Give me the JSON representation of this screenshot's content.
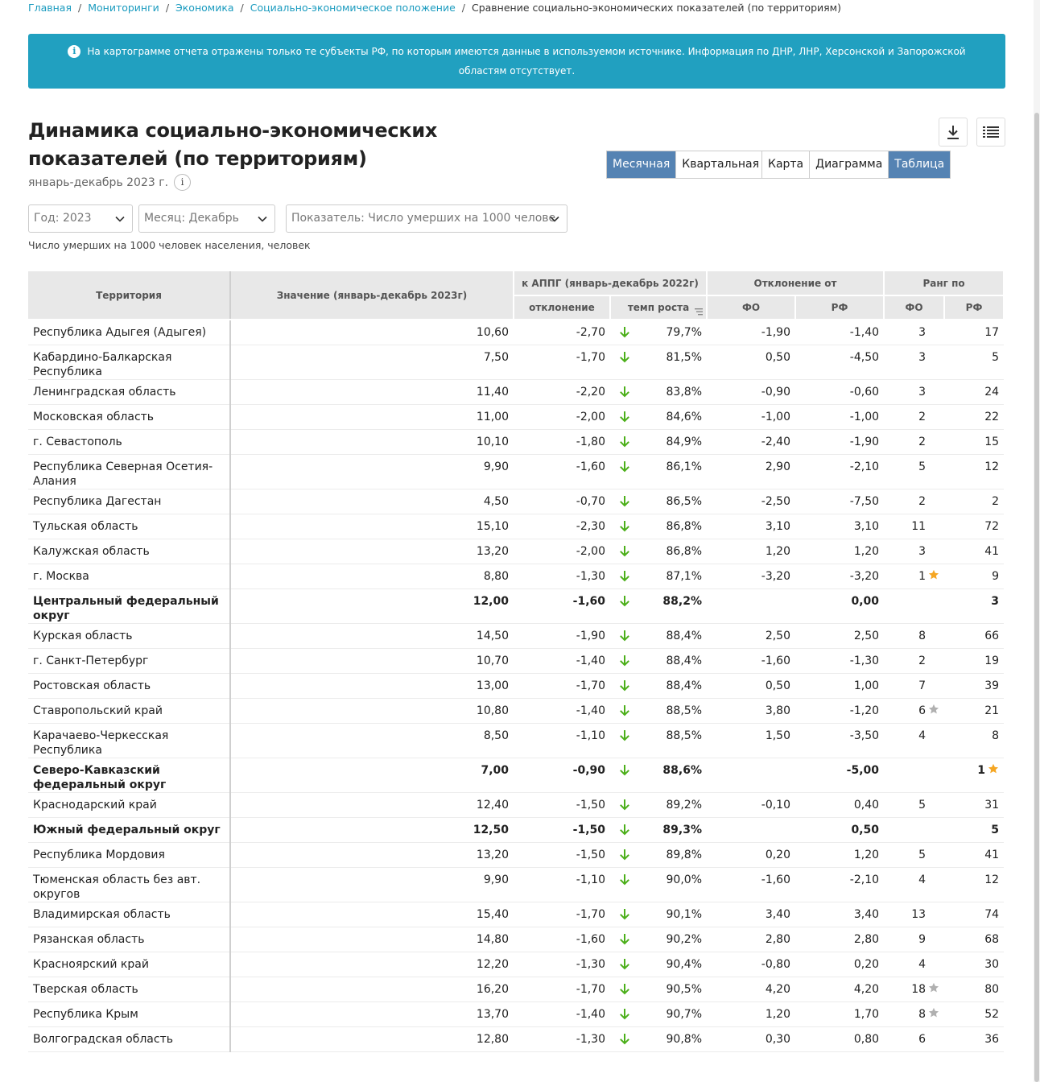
{
  "breadcrumb": {
    "items": [
      "Главная",
      "Мониторинги",
      "Экономика",
      "Социально-экономическое положение"
    ],
    "current": "Сравнение социально-экономических показателей (по территориям)"
  },
  "alert": {
    "text": "На картограмме отчета отражены только те субъекты РФ, по которым имеются данные в используемом источнике. Информация по ДНР, ЛНР, Херсонской и Запорожской областям отсутствует."
  },
  "header": {
    "title": "Динамика социально-экономических показателей (по территориям)",
    "period": "январь-декабрь 2023 г."
  },
  "toggles": {
    "period_options": [
      {
        "label": "Месячная",
        "active": true
      },
      {
        "label": "Квартальная",
        "active": false
      }
    ],
    "view_options": [
      {
        "label": "Карта",
        "active": false
      },
      {
        "label": "Диаграмма",
        "active": false
      },
      {
        "label": "Таблица",
        "active": true
      }
    ]
  },
  "filters": {
    "year": "Год: 2023",
    "month": "Месяц: Декабрь",
    "indicator": "Показатель: Число умерших на 1000 челове"
  },
  "unit_label": "Число умерших на 1000 человек населения, человек",
  "colors": {
    "accent": "#21a0c0",
    "active_toggle": "#5583b3",
    "arrow_down": "#4caf1a",
    "star_gold": "#f5a623",
    "star_gray": "#b0b0b0"
  },
  "table": {
    "headers": {
      "territory": "Территория",
      "value": "Значение (январь-декабрь 2023г)",
      "appg_group": "к АППГ (январь-декабрь 2022г)",
      "deviation": "отклонение",
      "growth": "темп роста",
      "diff_group": "Отклонение от",
      "fo": "ФО",
      "rf": "РФ",
      "rank_group": "Ранг по",
      "rank_fo": "ФО",
      "rank_rf": "РФ"
    },
    "rows": [
      {
        "territory": "Республика Адыгея (Адыгея)",
        "value": "10,60",
        "dev": "-2,70",
        "growth": "79,7%",
        "diff_fo": "-1,90",
        "diff_rf": "-1,40",
        "rank_fo": "3",
        "rank_rf": "17",
        "bold": false,
        "star_fo": "",
        "star_rf": ""
      },
      {
        "territory": "Кабардино-Балкарская Республика",
        "value": "7,50",
        "dev": "-1,70",
        "growth": "81,5%",
        "diff_fo": "0,50",
        "diff_rf": "-4,50",
        "rank_fo": "3",
        "rank_rf": "5",
        "bold": false,
        "star_fo": "",
        "star_rf": ""
      },
      {
        "territory": "Ленинградская область",
        "value": "11,40",
        "dev": "-2,20",
        "growth": "83,8%",
        "diff_fo": "-0,90",
        "diff_rf": "-0,60",
        "rank_fo": "3",
        "rank_rf": "24",
        "bold": false,
        "star_fo": "",
        "star_rf": ""
      },
      {
        "territory": "Московская область",
        "value": "11,00",
        "dev": "-2,00",
        "growth": "84,6%",
        "diff_fo": "-1,00",
        "diff_rf": "-1,00",
        "rank_fo": "2",
        "rank_rf": "22",
        "bold": false,
        "star_fo": "",
        "star_rf": ""
      },
      {
        "territory": "г. Севастополь",
        "value": "10,10",
        "dev": "-1,80",
        "growth": "84,9%",
        "diff_fo": "-2,40",
        "diff_rf": "-1,90",
        "rank_fo": "2",
        "rank_rf": "15",
        "bold": false,
        "star_fo": "",
        "star_rf": ""
      },
      {
        "territory": "Республика Северная Осетия-Алания",
        "value": "9,90",
        "dev": "-1,60",
        "growth": "86,1%",
        "diff_fo": "2,90",
        "diff_rf": "-2,10",
        "rank_fo": "5",
        "rank_rf": "12",
        "bold": false,
        "star_fo": "",
        "star_rf": ""
      },
      {
        "territory": "Республика Дагестан",
        "value": "4,50",
        "dev": "-0,70",
        "growth": "86,5%",
        "diff_fo": "-2,50",
        "diff_rf": "-7,50",
        "rank_fo": "2",
        "rank_rf": "2",
        "bold": false,
        "star_fo": "",
        "star_rf": ""
      },
      {
        "territory": "Тульская область",
        "value": "15,10",
        "dev": "-2,30",
        "growth": "86,8%",
        "diff_fo": "3,10",
        "diff_rf": "3,10",
        "rank_fo": "11",
        "rank_rf": "72",
        "bold": false,
        "star_fo": "",
        "star_rf": ""
      },
      {
        "territory": "Калужская область",
        "value": "13,20",
        "dev": "-2,00",
        "growth": "86,8%",
        "diff_fo": "1,20",
        "diff_rf": "1,20",
        "rank_fo": "3",
        "rank_rf": "41",
        "bold": false,
        "star_fo": "",
        "star_rf": ""
      },
      {
        "territory": "г. Москва",
        "value": "8,80",
        "dev": "-1,30",
        "growth": "87,1%",
        "diff_fo": "-3,20",
        "diff_rf": "-3,20",
        "rank_fo": "1",
        "rank_rf": "9",
        "bold": false,
        "star_fo": "gold",
        "star_rf": ""
      },
      {
        "territory": "Центральный федеральный округ",
        "value": "12,00",
        "dev": "-1,60",
        "growth": "88,2%",
        "diff_fo": "",
        "diff_rf": "0,00",
        "rank_fo": "",
        "rank_rf": "3",
        "bold": true,
        "star_fo": "",
        "star_rf": ""
      },
      {
        "territory": "Курская область",
        "value": "14,50",
        "dev": "-1,90",
        "growth": "88,4%",
        "diff_fo": "2,50",
        "diff_rf": "2,50",
        "rank_fo": "8",
        "rank_rf": "66",
        "bold": false,
        "star_fo": "",
        "star_rf": ""
      },
      {
        "territory": "г. Санкт-Петербург",
        "value": "10,70",
        "dev": "-1,40",
        "growth": "88,4%",
        "diff_fo": "-1,60",
        "diff_rf": "-1,30",
        "rank_fo": "2",
        "rank_rf": "19",
        "bold": false,
        "star_fo": "",
        "star_rf": ""
      },
      {
        "territory": "Ростовская область",
        "value": "13,00",
        "dev": "-1,70",
        "growth": "88,4%",
        "diff_fo": "0,50",
        "diff_rf": "1,00",
        "rank_fo": "7",
        "rank_rf": "39",
        "bold": false,
        "star_fo": "",
        "star_rf": ""
      },
      {
        "territory": "Ставропольский край",
        "value": "10,80",
        "dev": "-1,40",
        "growth": "88,5%",
        "diff_fo": "3,80",
        "diff_rf": "-1,20",
        "rank_fo": "6",
        "rank_rf": "21",
        "bold": false,
        "star_fo": "gray",
        "star_rf": ""
      },
      {
        "territory": "Карачаево-Черкесская Республика",
        "value": "8,50",
        "dev": "-1,10",
        "growth": "88,5%",
        "diff_fo": "1,50",
        "diff_rf": "-3,50",
        "rank_fo": "4",
        "rank_rf": "8",
        "bold": false,
        "star_fo": "",
        "star_rf": ""
      },
      {
        "territory": "Северо-Кавказский федеральный округ",
        "value": "7,00",
        "dev": "-0,90",
        "growth": "88,6%",
        "diff_fo": "",
        "diff_rf": "-5,00",
        "rank_fo": "",
        "rank_rf": "1",
        "bold": true,
        "star_fo": "",
        "star_rf": "gold"
      },
      {
        "territory": "Краснодарский край",
        "value": "12,40",
        "dev": "-1,50",
        "growth": "89,2%",
        "diff_fo": "-0,10",
        "diff_rf": "0,40",
        "rank_fo": "5",
        "rank_rf": "31",
        "bold": false,
        "star_fo": "",
        "star_rf": ""
      },
      {
        "territory": "Южный федеральный округ",
        "value": "12,50",
        "dev": "-1,50",
        "growth": "89,3%",
        "diff_fo": "",
        "diff_rf": "0,50",
        "rank_fo": "",
        "rank_rf": "5",
        "bold": true,
        "star_fo": "",
        "star_rf": ""
      },
      {
        "territory": "Республика Мордовия",
        "value": "13,20",
        "dev": "-1,50",
        "growth": "89,8%",
        "diff_fo": "0,20",
        "diff_rf": "1,20",
        "rank_fo": "5",
        "rank_rf": "41",
        "bold": false,
        "star_fo": "",
        "star_rf": ""
      },
      {
        "territory": "Тюменская область без авт. округов",
        "value": "9,90",
        "dev": "-1,10",
        "growth": "90,0%",
        "diff_fo": "-1,60",
        "diff_rf": "-2,10",
        "rank_fo": "4",
        "rank_rf": "12",
        "bold": false,
        "star_fo": "",
        "star_rf": ""
      },
      {
        "territory": "Владимирская область",
        "value": "15,40",
        "dev": "-1,70",
        "growth": "90,1%",
        "diff_fo": "3,40",
        "diff_rf": "3,40",
        "rank_fo": "13",
        "rank_rf": "74",
        "bold": false,
        "star_fo": "",
        "star_rf": ""
      },
      {
        "territory": "Рязанская область",
        "value": "14,80",
        "dev": "-1,60",
        "growth": "90,2%",
        "diff_fo": "2,80",
        "diff_rf": "2,80",
        "rank_fo": "9",
        "rank_rf": "68",
        "bold": false,
        "star_fo": "",
        "star_rf": ""
      },
      {
        "territory": "Красноярский край",
        "value": "12,20",
        "dev": "-1,30",
        "growth": "90,4%",
        "diff_fo": "-0,80",
        "diff_rf": "0,20",
        "rank_fo": "4",
        "rank_rf": "30",
        "bold": false,
        "star_fo": "",
        "star_rf": ""
      },
      {
        "territory": "Тверская область",
        "value": "16,20",
        "dev": "-1,70",
        "growth": "90,5%",
        "diff_fo": "4,20",
        "diff_rf": "4,20",
        "rank_fo": "18",
        "rank_rf": "80",
        "bold": false,
        "star_fo": "gray",
        "star_rf": ""
      },
      {
        "territory": "Республика Крым",
        "value": "13,70",
        "dev": "-1,40",
        "growth": "90,7%",
        "diff_fo": "1,20",
        "diff_rf": "1,70",
        "rank_fo": "8",
        "rank_rf": "52",
        "bold": false,
        "star_fo": "gray",
        "star_rf": ""
      },
      {
        "territory": "Волгоградская область",
        "value": "12,80",
        "dev": "-1,30",
        "growth": "90,8%",
        "diff_fo": "0,30",
        "diff_rf": "0,80",
        "rank_fo": "6",
        "rank_rf": "36",
        "bold": false,
        "star_fo": "",
        "star_rf": ""
      }
    ]
  }
}
